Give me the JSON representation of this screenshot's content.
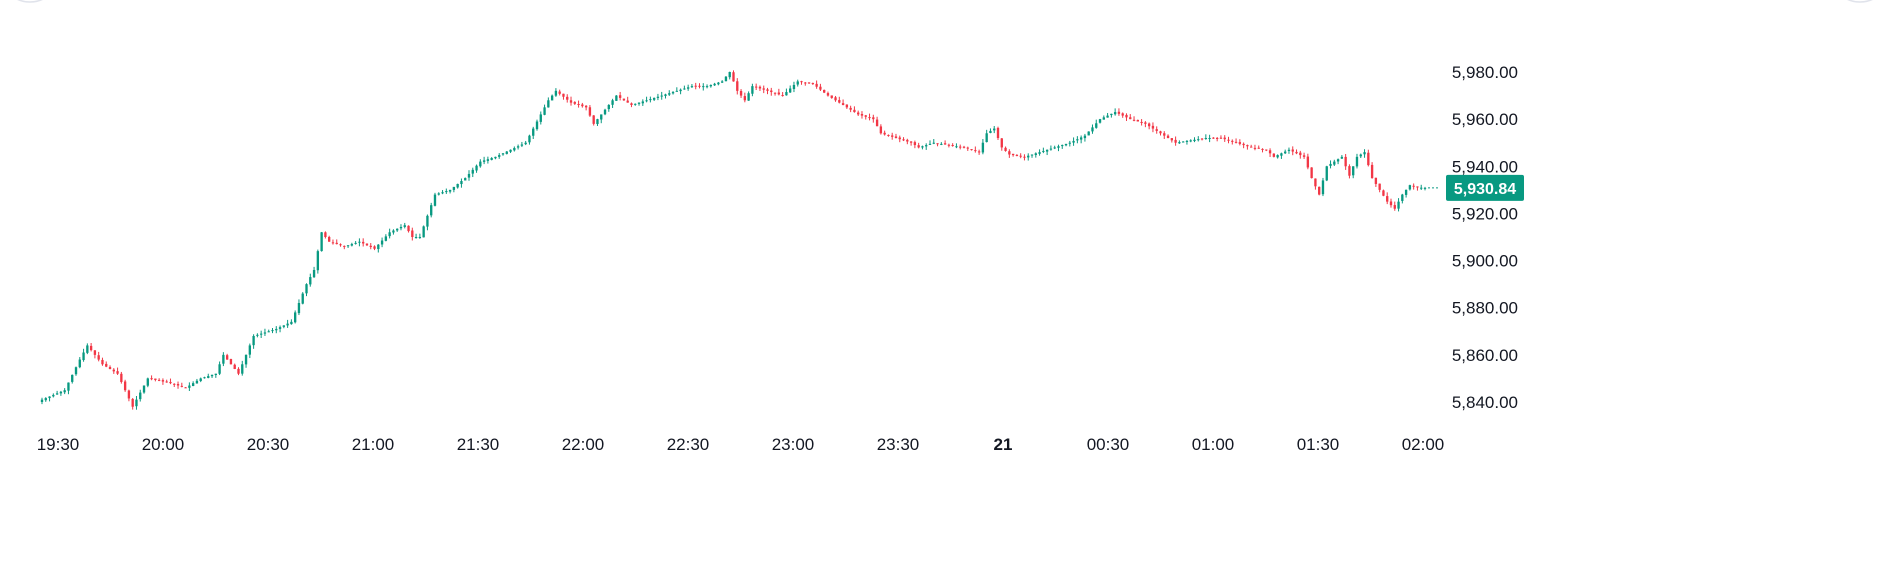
{
  "chart_data": {
    "type": "candlestick",
    "colors": {
      "up": "#089981",
      "down": "#f23645",
      "last_price_bg": "#089981",
      "text": "#131722"
    },
    "ylim": [
      5835,
      5985
    ],
    "y_ticks": [
      {
        "value": 5980,
        "label": "5,980.00"
      },
      {
        "value": 5960,
        "label": "5,960.00"
      },
      {
        "value": 5940,
        "label": "5,940.00"
      },
      {
        "value": 5920,
        "label": "5,920.00"
      },
      {
        "value": 5900,
        "label": "5,900.00"
      },
      {
        "value": 5880,
        "label": "5,880.00"
      },
      {
        "value": 5860,
        "label": "5,860.00"
      },
      {
        "value": 5840,
        "label": "5,840.00"
      }
    ],
    "x_ticks": [
      {
        "label": "19:30",
        "bold": false
      },
      {
        "label": "20:00",
        "bold": false
      },
      {
        "label": "20:30",
        "bold": false
      },
      {
        "label": "21:00",
        "bold": false
      },
      {
        "label": "21:30",
        "bold": false
      },
      {
        "label": "22:00",
        "bold": false
      },
      {
        "label": "22:30",
        "bold": false
      },
      {
        "label": "23:00",
        "bold": false
      },
      {
        "label": "23:30",
        "bold": false
      },
      {
        "label": "21",
        "bold": true
      },
      {
        "label": "00:30",
        "bold": false
      },
      {
        "label": "01:00",
        "bold": false
      },
      {
        "label": "01:30",
        "bold": false
      },
      {
        "label": "02:00",
        "bold": false
      }
    ],
    "last_price": {
      "value": 5930.84,
      "label": "5,930.84"
    },
    "close_path": [
      [
        0,
        5841
      ],
      [
        6,
        5845
      ],
      [
        10,
        5858
      ],
      [
        12,
        5864
      ],
      [
        16,
        5856
      ],
      [
        20,
        5852
      ],
      [
        24,
        5838
      ],
      [
        28,
        5850
      ],
      [
        34,
        5848
      ],
      [
        38,
        5846
      ],
      [
        42,
        5850
      ],
      [
        46,
        5852
      ],
      [
        48,
        5860
      ],
      [
        52,
        5852
      ],
      [
        56,
        5868
      ],
      [
        62,
        5871
      ],
      [
        66,
        5874
      ],
      [
        70,
        5890
      ],
      [
        72,
        5896
      ],
      [
        74,
        5912
      ],
      [
        76,
        5908
      ],
      [
        80,
        5906
      ],
      [
        84,
        5908
      ],
      [
        88,
        5905
      ],
      [
        92,
        5912
      ],
      [
        96,
        5915
      ],
      [
        98,
        5910
      ],
      [
        100,
        5910
      ],
      [
        104,
        5928
      ],
      [
        108,
        5930
      ],
      [
        112,
        5935
      ],
      [
        116,
        5942
      ],
      [
        120,
        5944
      ],
      [
        124,
        5947
      ],
      [
        128,
        5950
      ],
      [
        130,
        5956
      ],
      [
        134,
        5968
      ],
      [
        136,
        5972
      ],
      [
        140,
        5967
      ],
      [
        144,
        5965
      ],
      [
        146,
        5958
      ],
      [
        148,
        5962
      ],
      [
        152,
        5970
      ],
      [
        156,
        5966
      ],
      [
        160,
        5968
      ],
      [
        164,
        5970
      ],
      [
        168,
        5972
      ],
      [
        172,
        5974
      ],
      [
        176,
        5974
      ],
      [
        180,
        5976
      ],
      [
        182,
        5980
      ],
      [
        184,
        5972
      ],
      [
        186,
        5968
      ],
      [
        188,
        5974
      ],
      [
        192,
        5972
      ],
      [
        196,
        5970
      ],
      [
        200,
        5976
      ],
      [
        204,
        5975
      ],
      [
        208,
        5970
      ],
      [
        212,
        5966
      ],
      [
        216,
        5962
      ],
      [
        220,
        5960
      ],
      [
        222,
        5954
      ],
      [
        226,
        5952
      ],
      [
        230,
        5950
      ],
      [
        232,
        5948
      ],
      [
        236,
        5950
      ],
      [
        240,
        5949
      ],
      [
        244,
        5948
      ],
      [
        248,
        5946
      ],
      [
        250,
        5954
      ],
      [
        252,
        5956
      ],
      [
        254,
        5948
      ],
      [
        256,
        5945
      ],
      [
        260,
        5944
      ],
      [
        264,
        5946
      ],
      [
        268,
        5948
      ],
      [
        272,
        5950
      ],
      [
        276,
        5953
      ],
      [
        280,
        5960
      ],
      [
        284,
        5963
      ],
      [
        288,
        5960
      ],
      [
        292,
        5958
      ],
      [
        296,
        5954
      ],
      [
        300,
        5950
      ],
      [
        304,
        5951
      ],
      [
        308,
        5952
      ],
      [
        312,
        5952
      ],
      [
        316,
        5950
      ],
      [
        320,
        5948
      ],
      [
        324,
        5947
      ],
      [
        326,
        5944
      ],
      [
        330,
        5947
      ],
      [
        334,
        5944
      ],
      [
        336,
        5935
      ],
      [
        338,
        5928
      ],
      [
        340,
        5940
      ],
      [
        344,
        5944
      ],
      [
        346,
        5936
      ],
      [
        348,
        5944
      ],
      [
        350,
        5946
      ],
      [
        352,
        5935
      ],
      [
        356,
        5925
      ],
      [
        358,
        5922
      ],
      [
        360,
        5928
      ],
      [
        362,
        5932
      ],
      [
        364,
        5931
      ],
      [
        366,
        5930.84
      ]
    ]
  }
}
